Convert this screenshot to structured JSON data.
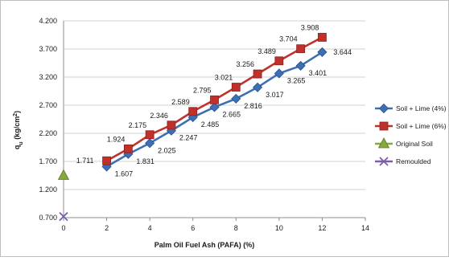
{
  "chart_data": {
    "type": "line",
    "title": "",
    "xlabel": "Palm Oil Fuel Ash (PAFA) (%)",
    "ylabel_main": "q",
    "ylabel_sub": "u",
    "ylabel_unit_pre": " (kg/cm",
    "ylabel_unit_sup": "2",
    "ylabel_unit_post": ")",
    "xlim": [
      0,
      14
    ],
    "ylim": [
      0.7,
      4.2
    ],
    "x_ticks": [
      0,
      2,
      4,
      6,
      8,
      10,
      12,
      14
    ],
    "y_ticks": [
      0.7,
      1.2,
      1.7,
      2.2,
      2.7,
      3.2,
      3.7,
      4.2
    ],
    "y_tick_labels": [
      "0.700",
      "1.200",
      "1.700",
      "2.200",
      "2.700",
      "3.200",
      "3.700",
      "4.200"
    ],
    "grid": "horizontal",
    "legend_position": "right",
    "series": [
      {
        "name": "Soil + Lime (4%)",
        "color": "#3d6fb4",
        "marker": "diamond",
        "x": [
          2,
          3,
          4,
          5,
          6,
          7,
          8,
          9,
          10,
          11,
          12
        ],
        "values": [
          1.607,
          1.831,
          2.025,
          2.247,
          2.485,
          2.665,
          2.816,
          3.017,
          3.265,
          3.401,
          3.644
        ],
        "labels": [
          "1.607",
          "1.831",
          "2.025",
          "2.247",
          "2.485",
          "2.665",
          "2.816",
          "3.017",
          "3.265",
          "3.401",
          "3.644"
        ]
      },
      {
        "name": "Soil + Lime (6%)",
        "color": "#c0312c",
        "marker": "square",
        "x": [
          2,
          3,
          4,
          5,
          6,
          7,
          8,
          9,
          10,
          11,
          12
        ],
        "values": [
          1.711,
          1.924,
          2.175,
          2.346,
          2.589,
          2.795,
          3.021,
          3.256,
          3.489,
          3.704,
          3.908
        ],
        "labels": [
          "1.711",
          "1.924",
          "2.175",
          "2.346",
          "2.589",
          "2.795",
          "3.021",
          "3.256",
          "3.489",
          "3.704",
          "3.908"
        ]
      },
      {
        "name": "Original Soil",
        "color": "#86a83c",
        "marker": "triangle",
        "x": [
          0
        ],
        "values": [
          1.45
        ],
        "labels": []
      },
      {
        "name": "Remoulded",
        "color": "#7b5ea7",
        "marker": "x",
        "x": [
          0
        ],
        "values": [
          0.72
        ],
        "labels": []
      }
    ]
  }
}
